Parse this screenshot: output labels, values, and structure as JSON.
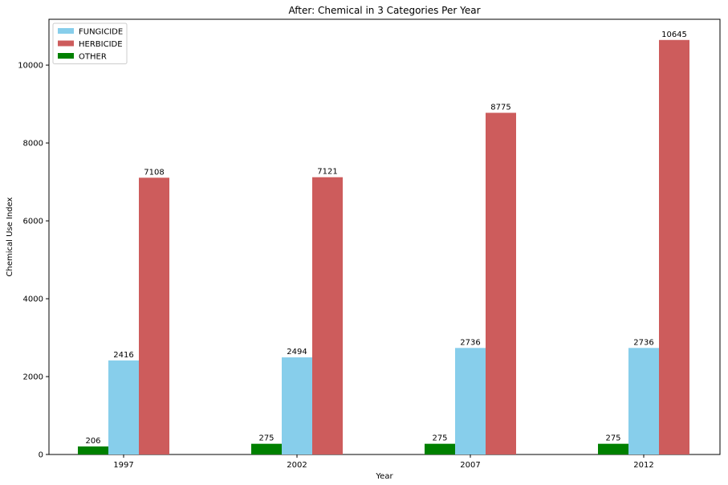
{
  "chart_data": {
    "type": "bar",
    "title": "After: Chemical in 3 Categories Per Year",
    "xlabel": "Year",
    "ylabel": "Chemical Use Index",
    "categories": [
      "1997",
      "2002",
      "2007",
      "2012"
    ],
    "series": [
      {
        "name": "OTHER",
        "color": "#008000",
        "values": [
          206,
          275,
          275,
          275
        ]
      },
      {
        "name": "FUNGICIDE",
        "color": "#87ceeb",
        "values": [
          2416,
          2494,
          2736,
          2736
        ]
      },
      {
        "name": "HERBICIDE",
        "color": "#cd5c5c",
        "values": [
          7108,
          7121,
          8775,
          10645
        ]
      }
    ],
    "legend_order": [
      "FUNGICIDE",
      "HERBICIDE",
      "OTHER"
    ],
    "ylim": [
      0,
      11177
    ],
    "yticks": [
      0,
      2000,
      4000,
      6000,
      8000,
      10000
    ],
    "legend_position": "top-left",
    "grid": false
  }
}
